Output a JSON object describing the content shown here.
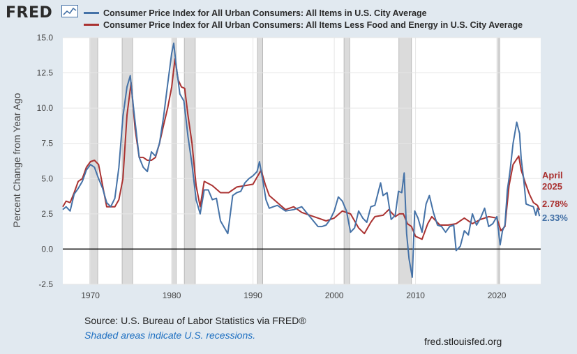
{
  "header": {
    "logo_text": "FRED",
    "logo_icon": "line-chart-icon"
  },
  "colors": {
    "background": "#e1e9f0",
    "plot_bg": "#ffffff",
    "recession": "#dbdbdb",
    "series_all_items": "#4572a7",
    "series_core": "#aa3231",
    "zero_line": "#000000"
  },
  "chart_data": {
    "type": "line",
    "title": "",
    "xlabel": "",
    "ylabel": "Percent Change from Year Ago",
    "xlim": [
      1966.6,
      2025.4
    ],
    "ylim": [
      -2.5,
      15.0
    ],
    "x_ticks": [
      "1970",
      "1980",
      "1990",
      "2000",
      "2010",
      "2020"
    ],
    "y_ticks": [
      "15.0",
      "12.5",
      "10.0",
      "7.5",
      "5.0",
      "2.5",
      "0.0",
      "-2.5"
    ],
    "grid": true,
    "legend_position": "top",
    "recessions": [
      [
        1969.95,
        1970.9
      ],
      [
        1973.9,
        1975.2
      ],
      [
        1980.0,
        1980.55
      ],
      [
        1981.55,
        1982.9
      ],
      [
        1990.55,
        1991.2
      ],
      [
        2001.2,
        2001.9
      ],
      [
        2007.95,
        2009.5
      ],
      [
        2020.15,
        2020.35
      ]
    ],
    "series": [
      {
        "name": "Consumer Price Index for All Urban Consumers: All Items in U.S. City Average",
        "x": [
          1966.6,
          1967.0,
          1967.5,
          1968.0,
          1968.5,
          1969.0,
          1969.5,
          1970.0,
          1970.5,
          1971.0,
          1971.5,
          1972.0,
          1972.5,
          1973.0,
          1973.5,
          1974.0,
          1974.5,
          1974.9,
          1975.3,
          1975.7,
          1976.0,
          1976.5,
          1977.0,
          1977.5,
          1978.0,
          1978.5,
          1979.0,
          1979.5,
          1980.0,
          1980.25,
          1980.6,
          1981.0,
          1981.5,
          1982.0,
          1982.5,
          1983.0,
          1983.5,
          1984.0,
          1984.5,
          1985.0,
          1985.5,
          1986.0,
          1986.5,
          1986.9,
          1987.5,
          1988.0,
          1988.5,
          1989.0,
          1989.5,
          1990.0,
          1990.5,
          1990.8,
          1991.2,
          1991.6,
          1992.0,
          1992.5,
          1993.0,
          1994.0,
          1995.0,
          1996.0,
          1997.0,
          1998.0,
          1998.5,
          1999.0,
          1999.5,
          2000.0,
          2000.5,
          2001.0,
          2001.5,
          2002.0,
          2002.5,
          2003.0,
          2003.5,
          2004.0,
          2004.5,
          2005.0,
          2005.7,
          2006.0,
          2006.5,
          2007.0,
          2007.5,
          2007.9,
          2008.3,
          2008.6,
          2008.9,
          2009.2,
          2009.6,
          2009.9,
          2010.3,
          2010.8,
          2011.3,
          2011.7,
          2012.2,
          2012.7,
          2013.2,
          2013.7,
          2014.2,
          2014.7,
          2015.0,
          2015.5,
          2016.0,
          2016.5,
          2017.0,
          2017.5,
          2018.0,
          2018.5,
          2019.0,
          2019.5,
          2020.0,
          2020.4,
          2020.7,
          2021.0,
          2021.3,
          2021.6,
          2022.0,
          2022.45,
          2022.8,
          2023.0,
          2023.3,
          2023.6,
          2024.0,
          2024.5,
          2024.8,
          2025.0,
          2025.25
        ],
        "values": [
          2.8,
          3.0,
          2.7,
          3.9,
          4.3,
          4.8,
          5.6,
          6.0,
          5.8,
          5.0,
          4.3,
          3.3,
          3.0,
          3.6,
          5.8,
          9.4,
          11.5,
          12.3,
          10.0,
          8.0,
          6.5,
          5.8,
          5.5,
          6.9,
          6.6,
          7.5,
          9.4,
          11.7,
          13.9,
          14.6,
          12.8,
          11.0,
          10.5,
          8.0,
          6.0,
          3.5,
          2.5,
          4.2,
          4.2,
          3.5,
          3.6,
          2.0,
          1.5,
          1.1,
          3.8,
          4.0,
          4.1,
          4.7,
          5.0,
          5.2,
          5.5,
          6.2,
          4.9,
          3.5,
          2.9,
          3.0,
          3.1,
          2.7,
          2.8,
          3.0,
          2.3,
          1.6,
          1.6,
          1.7,
          2.1,
          2.7,
          3.7,
          3.4,
          2.7,
          1.2,
          1.5,
          2.7,
          2.2,
          1.9,
          3.0,
          3.1,
          4.7,
          3.8,
          4.0,
          2.1,
          2.4,
          4.1,
          4.0,
          5.4,
          1.1,
          -0.7,
          -2.0,
          2.7,
          2.2,
          1.2,
          3.2,
          3.8,
          2.6,
          1.7,
          1.6,
          1.2,
          1.6,
          1.7,
          -0.1,
          0.2,
          1.3,
          1.0,
          2.5,
          1.7,
          2.2,
          2.9,
          1.6,
          1.8,
          2.3,
          0.3,
          1.3,
          1.7,
          4.2,
          5.4,
          7.5,
          9.0,
          8.2,
          6.4,
          5.0,
          3.2,
          3.1,
          3.0,
          2.4,
          2.9,
          2.33
        ]
      },
      {
        "name": "Consumer Price Index for All Urban Consumers: All Items Less Food and Energy in U.S. City Average",
        "x": [
          1966.6,
          1967.0,
          1967.5,
          1968.0,
          1968.5,
          1969.0,
          1969.5,
          1970.0,
          1970.5,
          1971.0,
          1971.5,
          1972.0,
          1972.5,
          1973.0,
          1973.5,
          1974.0,
          1974.5,
          1975.0,
          1975.5,
          1976.0,
          1976.5,
          1977.0,
          1977.5,
          1978.0,
          1978.5,
          1979.0,
          1979.5,
          1980.0,
          1980.4,
          1980.8,
          1981.2,
          1981.6,
          1982.0,
          1982.5,
          1983.0,
          1983.5,
          1984.0,
          1985.0,
          1986.0,
          1987.0,
          1988.0,
          1989.0,
          1990.0,
          1990.5,
          1991.0,
          1991.5,
          1992.0,
          1993.0,
          1994.0,
          1995.0,
          1996.0,
          1997.0,
          1998.0,
          1999.0,
          2000.0,
          2001.0,
          2002.0,
          2003.0,
          2003.7,
          2004.5,
          2005.0,
          2006.0,
          2006.7,
          2007.5,
          2008.0,
          2008.5,
          2009.0,
          2009.5,
          2010.0,
          2010.8,
          2011.5,
          2012.0,
          2013.0,
          2014.0,
          2015.0,
          2016.0,
          2017.0,
          2018.0,
          2019.0,
          2020.0,
          2020.5,
          2021.0,
          2021.5,
          2022.0,
          2022.7,
          2023.0,
          2023.5,
          2024.0,
          2024.5,
          2025.0,
          2025.25
        ],
        "values": [
          3.0,
          3.4,
          3.3,
          4.0,
          4.8,
          5.0,
          5.8,
          6.2,
          6.3,
          6.0,
          4.5,
          3.0,
          3.0,
          3.0,
          3.5,
          5.0,
          9.5,
          11.8,
          8.5,
          6.5,
          6.5,
          6.3,
          6.3,
          6.5,
          7.5,
          8.8,
          10.0,
          11.5,
          13.5,
          12.0,
          11.5,
          11.4,
          9.5,
          7.5,
          4.5,
          3.0,
          4.8,
          4.5,
          4.0,
          4.0,
          4.4,
          4.5,
          4.6,
          5.1,
          5.6,
          4.6,
          3.8,
          3.3,
          2.8,
          3.0,
          2.6,
          2.4,
          2.2,
          2.0,
          2.2,
          2.7,
          2.5,
          1.5,
          1.1,
          1.9,
          2.3,
          2.4,
          2.8,
          2.3,
          2.5,
          2.5,
          1.8,
          1.6,
          0.9,
          0.7,
          1.8,
          2.3,
          1.7,
          1.7,
          1.8,
          2.2,
          1.8,
          2.1,
          2.3,
          2.2,
          1.3,
          1.6,
          4.5,
          6.0,
          6.6,
          5.6,
          4.7,
          3.9,
          3.3,
          3.1,
          2.78
        ]
      }
    ],
    "annotations": {
      "date_line1": "April",
      "date_line2": "2025",
      "core_value": "2.78%",
      "all_value": "2.33%"
    }
  },
  "footer": {
    "source": "Source: U.S. Bureau of Labor Statistics via FRED®",
    "recession_note": "Shaded areas indicate U.S. recessions.",
    "site": "fred.stlouisfed.org"
  }
}
